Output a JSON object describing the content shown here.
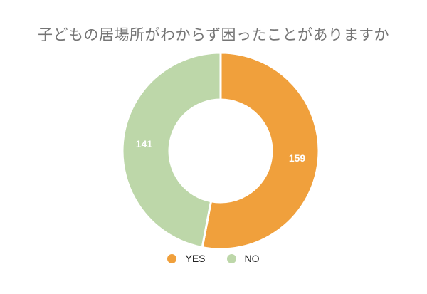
{
  "chart_data": {
    "type": "pie",
    "title": "子どもの居場所がわからず困ったことがありますか",
    "categories": [
      "YES",
      "NO"
    ],
    "values": [
      159,
      141
    ],
    "colors": [
      "#F0A03C",
      "#BDD7A9"
    ],
    "donut": true,
    "legend_position": "bottom"
  }
}
